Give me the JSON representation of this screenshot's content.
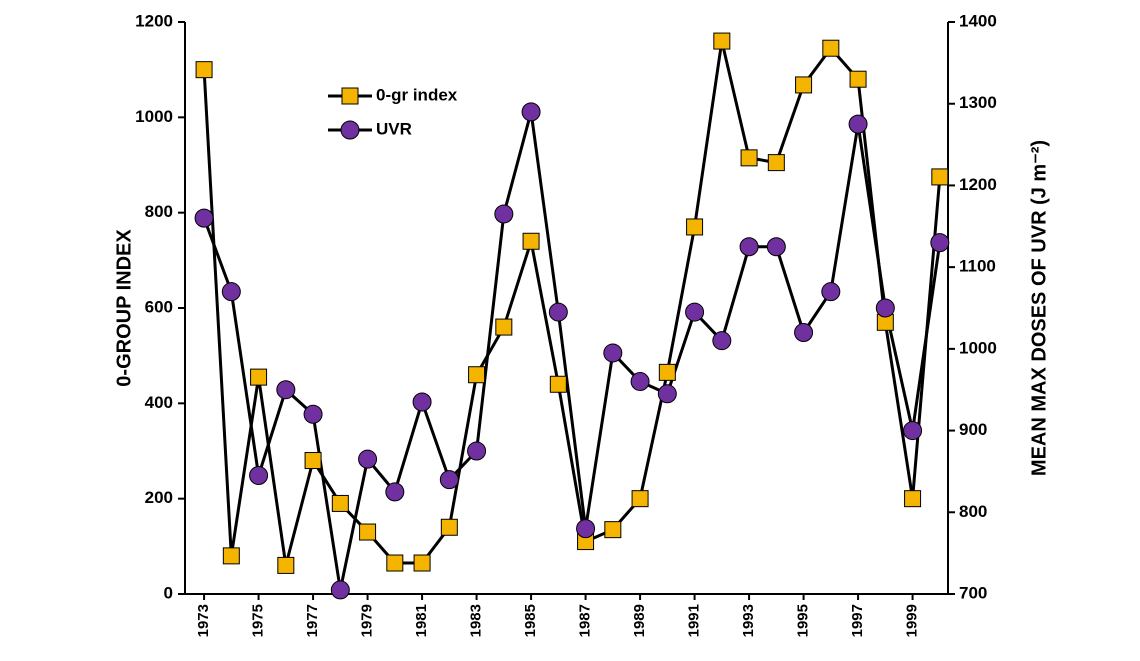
{
  "chart_data": {
    "type": "line",
    "y_label": "0-GROUP INDEX",
    "y2_label": "MEAN MAX DOSES OF UVR (J m⁻²)",
    "x": [
      1973,
      1974,
      1975,
      1976,
      1977,
      1978,
      1979,
      1980,
      1981,
      1982,
      1983,
      1984,
      1985,
      1986,
      1987,
      1988,
      1989,
      1990,
      1991,
      1992,
      1993,
      1994,
      1995,
      1996,
      1997,
      1998,
      1999,
      2000
    ],
    "xlim": [
      1972.3,
      2000.3
    ],
    "xticks": [
      1973,
      1975,
      1977,
      1979,
      1981,
      1983,
      1985,
      1987,
      1989,
      1991,
      1993,
      1995,
      1997,
      1999
    ],
    "ylim": [
      0,
      1200
    ],
    "yticks": [
      0,
      200,
      400,
      600,
      800,
      1000,
      1200
    ],
    "y2lim": [
      700,
      1400
    ],
    "y2ticks": [
      700,
      800,
      900,
      1000,
      1100,
      1200,
      1300,
      1400
    ],
    "legend": "upper left",
    "line_color": "#000000",
    "series": [
      {
        "name": "0-gr index",
        "color": "#f5b400",
        "marker": "square",
        "axis": "y",
        "values": [
          1100,
          80,
          455,
          60,
          280,
          190,
          130,
          65,
          65,
          140,
          460,
          560,
          740,
          440,
          110,
          135,
          200,
          465,
          770,
          1160,
          915,
          905,
          1068,
          1145,
          1080,
          570,
          200,
          875
        ]
      },
      {
        "name": "UVR",
        "color": "#7030a0",
        "marker": "circle",
        "axis": "y2",
        "values": [
          1160,
          1070,
          845,
          950,
          920,
          705,
          865,
          825,
          935,
          840,
          875,
          1165,
          1290,
          1045,
          780,
          995,
          960,
          945,
          1045,
          1010,
          1125,
          1125,
          1020,
          1070,
          1275,
          1050,
          900,
          1130
        ]
      }
    ]
  }
}
